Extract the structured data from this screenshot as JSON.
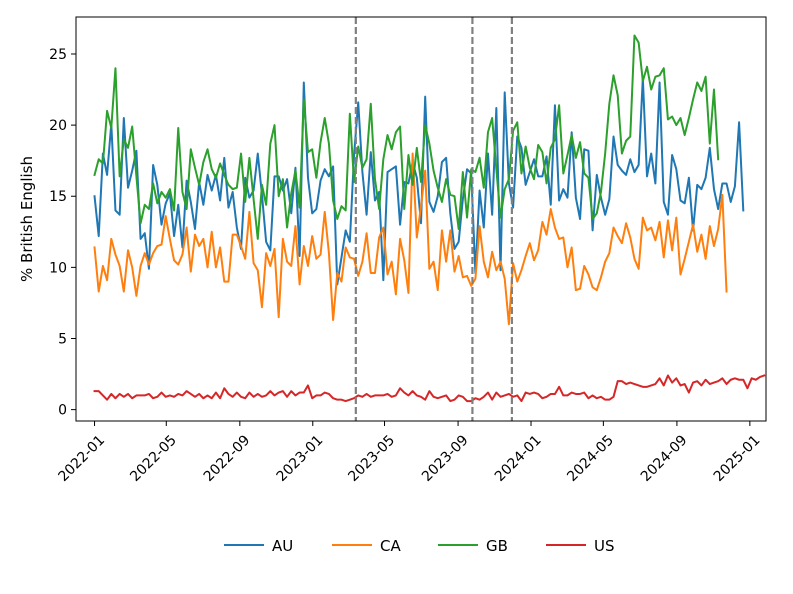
{
  "chart_data": {
    "type": "line",
    "title": "",
    "xlabel": "",
    "ylabel": "% British English",
    "x_start": "2022-01-01",
    "x_end": "2024-12-29",
    "x_step_days": 7,
    "xlim": [
      "2021-12-01",
      "2025-01-28"
    ],
    "ylim": [
      -0.8,
      27.6
    ],
    "x_ticks": [
      {
        "date": "2022-01-01",
        "label": "2022-01"
      },
      {
        "date": "2022-05-01",
        "label": "2022-05"
      },
      {
        "date": "2022-09-01",
        "label": "2022-09"
      },
      {
        "date": "2023-01-01",
        "label": "2023-01"
      },
      {
        "date": "2023-05-01",
        "label": "2023-05"
      },
      {
        "date": "2023-09-01",
        "label": "2023-09"
      },
      {
        "date": "2024-01-01",
        "label": "2024-01"
      },
      {
        "date": "2024-05-01",
        "label": "2024-05"
      },
      {
        "date": "2024-09-01",
        "label": "2024-09"
      },
      {
        "date": "2025-01-01",
        "label": "2025-01"
      }
    ],
    "y_ticks": [
      {
        "value": 0,
        "label": "0"
      },
      {
        "value": 5,
        "label": "5"
      },
      {
        "value": 10,
        "label": "10"
      },
      {
        "value": 15,
        "label": "15"
      },
      {
        "value": 20,
        "label": "20"
      },
      {
        "value": 25,
        "label": "25"
      }
    ],
    "vlines": [
      {
        "date": "2023-03-14",
        "style": "dashed",
        "color": "#808080"
      },
      {
        "date": "2023-09-25",
        "style": "dashed",
        "color": "#808080"
      },
      {
        "date": "2023-11-30",
        "style": "dashed",
        "color": "#808080"
      }
    ],
    "legend_position": "bottom-center",
    "series": [
      {
        "name": "AU",
        "color": "#1f77b4",
        "values": [
          15.0,
          12.2,
          18.0,
          16.5,
          20.1,
          14.0,
          13.7,
          20.5,
          15.6,
          16.8,
          18.2,
          12.0,
          12.4,
          9.9,
          17.2,
          15.8,
          13.0,
          14.5,
          15.2,
          12.2,
          14.4,
          11.4,
          16.1,
          14.6,
          12.7,
          16.0,
          14.4,
          16.5,
          15.4,
          16.5,
          14.7,
          17.7,
          14.2,
          15.3,
          12.8,
          11.3,
          16.3,
          14.9,
          15.4,
          18.0,
          15.1,
          11.8,
          11.2,
          16.4,
          16.4,
          15.4,
          16.2,
          13.8,
          17.0,
          10.8,
          23.0,
          16.3,
          13.8,
          14.1,
          16.1,
          16.9,
          16.4,
          17.1,
          8.8,
          10.7,
          12.6,
          11.8,
          17.9,
          21.6,
          16.7,
          13.7,
          18.1,
          14.7,
          15.3,
          9.1,
          16.7,
          16.9,
          17.1,
          13.0,
          16.0,
          15.9,
          17.4,
          16.3,
          13.1,
          22.0,
          14.6,
          13.9,
          15.0,
          17.4,
          17.7,
          13.8,
          11.3,
          11.8,
          14.8,
          16.9,
          16.6,
          9.6,
          15.4,
          12.8,
          18.0,
          13.7,
          21.2,
          9.8,
          22.3,
          15.9,
          14.2,
          19.2,
          18.4,
          15.8,
          16.7,
          17.6,
          16.4,
          16.4,
          17.8,
          14.4,
          21.4,
          14.7,
          15.5,
          14.9,
          19.5,
          14.9,
          13.4,
          18.3,
          18.2,
          12.6,
          16.5,
          14.9,
          13.7,
          14.8,
          19.2,
          17.2,
          16.8,
          16.5,
          17.6,
          16.7,
          17.2,
          23.3,
          16.4,
          18.0,
          15.9,
          23.0,
          14.6,
          13.7,
          17.9,
          16.9,
          14.7,
          14.5,
          16.3,
          12.6,
          15.8,
          15.5,
          16.3,
          18.4,
          15.5,
          14.1,
          15.9,
          15.9,
          14.6,
          15.7,
          20.2,
          14.0
        ]
      },
      {
        "name": "CA",
        "color": "#ff7f0e",
        "values": [
          11.4,
          8.3,
          10.1,
          9.1,
          12.0,
          10.9,
          10.1,
          8.3,
          11.2,
          10.0,
          8.0,
          10.1,
          11.0,
          10.2,
          11.0,
          11.5,
          11.6,
          13.6,
          12.0,
          10.5,
          10.2,
          10.9,
          12.8,
          9.7,
          12.3,
          11.5,
          12.0,
          10.0,
          12.5,
          10.0,
          11.4,
          9.0,
          9.0,
          12.3,
          12.3,
          11.5,
          10.6,
          13.9,
          10.3,
          9.8,
          7.2,
          11.0,
          10.1,
          11.3,
          6.5,
          12.0,
          10.4,
          10.1,
          12.9,
          8.8,
          11.5,
          10.1,
          12.2,
          10.6,
          10.9,
          13.9,
          11.0,
          6.3,
          9.6,
          9.0,
          11.4,
          10.7,
          10.6,
          9.4,
          10.4,
          12.4,
          9.6,
          9.6,
          12.1,
          12.8,
          9.5,
          10.4,
          8.1,
          12.0,
          10.5,
          8.2,
          18.0,
          12.1,
          14.3,
          16.8,
          9.9,
          10.4,
          8.4,
          12.6,
          10.4,
          12.6,
          9.7,
          10.8,
          9.3,
          9.4,
          8.7,
          9.2,
          12.9,
          10.4,
          9.3,
          11.1,
          9.8,
          10.4,
          9.2,
          6.0,
          10.3,
          9.0,
          9.8,
          10.8,
          11.7,
          10.5,
          11.2,
          13.2,
          12.3,
          14.1,
          12.8,
          12.0,
          12.1,
          10.0,
          11.4,
          8.4,
          8.5,
          10.1,
          9.5,
          8.6,
          8.4,
          9.3,
          10.4,
          11.0,
          12.8,
          12.2,
          11.7,
          13.1,
          12.1,
          10.6,
          9.9,
          13.5,
          12.6,
          12.8,
          11.9,
          13.2,
          10.7,
          13.3,
          11.2,
          13.5,
          9.5,
          10.6,
          11.8,
          13.0,
          11.1,
          12.3,
          10.6,
          12.9,
          11.5,
          12.7,
          15.1,
          8.3
        ]
      },
      {
        "name": "GB",
        "color": "#2ca02c",
        "values": [
          16.5,
          17.6,
          17.3,
          21.0,
          19.8,
          24.0,
          16.4,
          19.0,
          18.4,
          19.9,
          16.4,
          13.1,
          14.4,
          14.1,
          15.9,
          14.5,
          15.3,
          14.9,
          15.5,
          14.0,
          19.8,
          15.3,
          14.1,
          18.3,
          17.0,
          15.8,
          17.4,
          18.3,
          16.9,
          16.3,
          17.3,
          16.5,
          15.8,
          15.5,
          15.6,
          18.0,
          14.6,
          17.7,
          14.8,
          12.0,
          15.8,
          14.4,
          18.7,
          20.0,
          15.0,
          16.2,
          12.8,
          15.2,
          16.8,
          14.2,
          21.8,
          18.1,
          18.3,
          16.3,
          18.8,
          20.5,
          18.7,
          14.7,
          13.4,
          14.3,
          14.0,
          20.8,
          16.0,
          18.5,
          17.0,
          17.6,
          21.5,
          16.2,
          14.1,
          17.6,
          19.3,
          18.3,
          19.5,
          19.9,
          14.1,
          17.9,
          15.8,
          18.4,
          16.0,
          20.0,
          18.7,
          16.8,
          15.6,
          14.6,
          16.2,
          15.1,
          15.0,
          12.7,
          16.7,
          13.5,
          16.9,
          16.7,
          17.7,
          15.6,
          19.5,
          20.5,
          16.9,
          13.5,
          15.5,
          16.2,
          19.6,
          20.2,
          16.6,
          18.5,
          17.0,
          16.2,
          18.6,
          18.1,
          15.9,
          18.4,
          19.0,
          21.4,
          16.6,
          17.9,
          19.3,
          17.7,
          18.8,
          16.6,
          16.3,
          13.4,
          13.8,
          15.3,
          18.0,
          21.5,
          23.5,
          22.1,
          18.0,
          18.9,
          19.2,
          26.3,
          25.8,
          23.1,
          24.1,
          22.5,
          23.4,
          23.5,
          24.0,
          20.4,
          20.6,
          20.0,
          20.5,
          19.3,
          20.5,
          21.8,
          23.0,
          22.4,
          23.4,
          18.7,
          22.5,
          17.6
        ]
      },
      {
        "name": "US",
        "color": "#d62728",
        "values": [
          1.3,
          1.3,
          1.0,
          0.7,
          1.1,
          0.8,
          1.1,
          0.9,
          1.1,
          0.8,
          1.0,
          1.0,
          1.0,
          1.1,
          0.8,
          0.9,
          1.2,
          0.9,
          1.0,
          0.9,
          1.1,
          1.0,
          1.3,
          1.1,
          0.9,
          1.1,
          0.8,
          1.0,
          0.8,
          1.2,
          0.8,
          1.5,
          1.1,
          0.9,
          1.2,
          0.9,
          0.8,
          1.2,
          0.9,
          1.1,
          0.9,
          1.0,
          1.3,
          1.0,
          1.2,
          1.3,
          0.9,
          1.3,
          1.0,
          1.2,
          1.2,
          1.7,
          0.8,
          1.0,
          1.0,
          1.2,
          1.1,
          0.8,
          0.7,
          0.7,
          0.6,
          0.7,
          0.8,
          1.0,
          0.9,
          1.1,
          0.9,
          1.0,
          1.0,
          1.0,
          1.1,
          0.9,
          1.0,
          1.5,
          1.2,
          1.0,
          1.3,
          1.0,
          0.9,
          0.7,
          1.3,
          0.9,
          0.8,
          0.9,
          1.0,
          0.6,
          0.7,
          1.0,
          0.9,
          0.6,
          0.6,
          0.8,
          0.7,
          0.9,
          1.2,
          0.7,
          1.2,
          0.9,
          1.0,
          1.1,
          0.9,
          1.0,
          0.6,
          1.2,
          1.1,
          1.2,
          1.1,
          0.8,
          0.9,
          1.1,
          1.1,
          1.6,
          1.0,
          1.0,
          1.2,
          1.1,
          1.1,
          1.2,
          0.8,
          1.0,
          0.8,
          0.9,
          0.7,
          0.7,
          0.9,
          2.0,
          2.0,
          1.8,
          1.9,
          1.8,
          1.7,
          1.6,
          1.6,
          1.7,
          1.8,
          2.2,
          1.7,
          2.4,
          1.9,
          2.2,
          1.7,
          1.8,
          1.2,
          1.9,
          2.0,
          1.7,
          2.1,
          1.8,
          1.9,
          2.0,
          2.2,
          1.8,
          2.1,
          2.2,
          2.1,
          2.1,
          1.5,
          2.2,
          2.1,
          2.3,
          2.4
        ]
      }
    ]
  }
}
